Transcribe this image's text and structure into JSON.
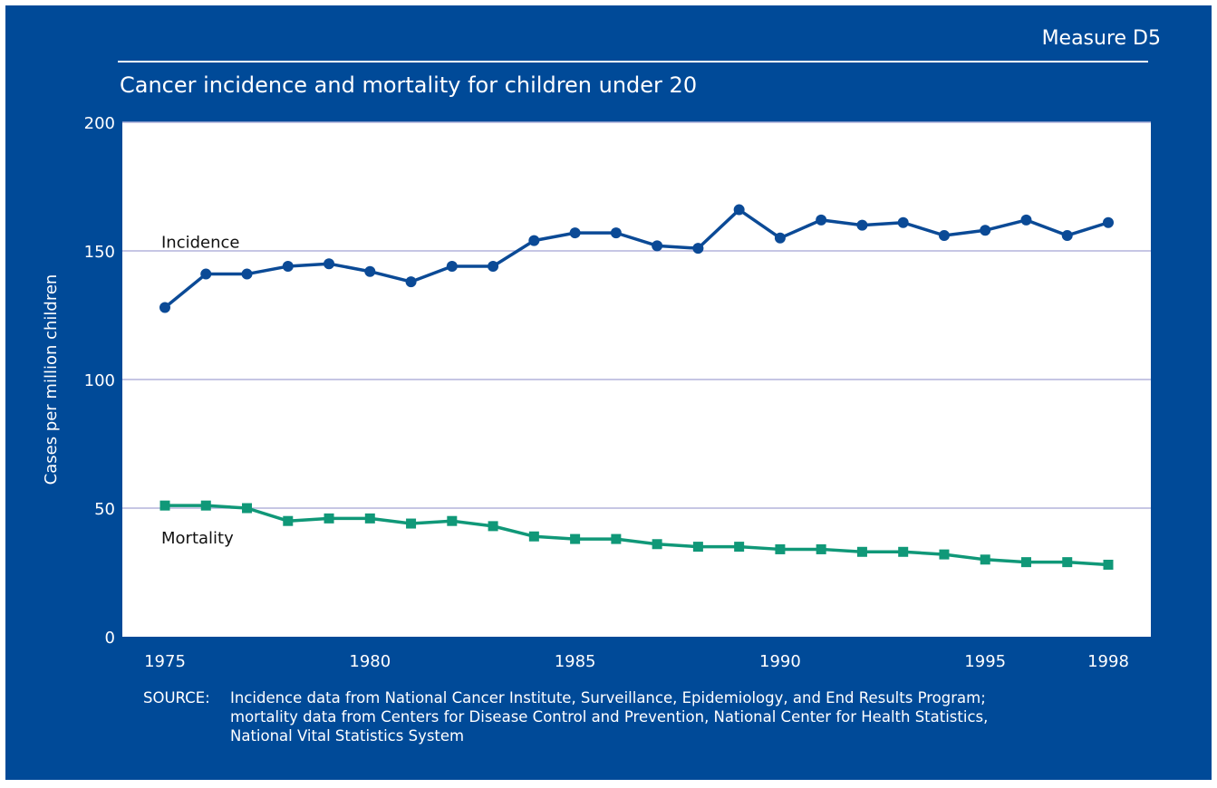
{
  "header": {
    "measure": "Measure D5",
    "title": "Cancer incidence and mortality for children under 20"
  },
  "source": {
    "label": "SOURCE:",
    "lines": [
      "Incidence data from National Cancer Institute, Surveillance, Epidemiology, and End Results Program;",
      "mortality data from Centers for Disease Control and Prevention, National Center for Health Statistics,",
      "National Vital Statistics System"
    ]
  },
  "colors": {
    "background": "#004a98",
    "plot_area": "#ffffff",
    "gridline": "#b4b4dc",
    "incidence": "#0b4a96",
    "mortality": "#109878",
    "text": "#ffffff"
  },
  "chart_data": {
    "type": "line",
    "title": "Cancer incidence and mortality for children under 20",
    "xlabel": "",
    "ylabel": "Cases per million children",
    "ylim": [
      0,
      200
    ],
    "yticks": [
      0,
      50,
      100,
      150,
      200
    ],
    "xlim": [
      1975,
      1998
    ],
    "xticks": [
      1975,
      1980,
      1985,
      1990,
      1995,
      1998
    ],
    "grid": true,
    "x": [
      1975,
      1976,
      1977,
      1978,
      1979,
      1980,
      1981,
      1982,
      1983,
      1984,
      1985,
      1986,
      1987,
      1988,
      1989,
      1990,
      1991,
      1992,
      1993,
      1994,
      1995,
      1996,
      1997,
      1998
    ],
    "series": [
      {
        "name": "Incidence",
        "marker": "circle",
        "values": [
          128,
          141,
          141,
          144,
          145,
          142,
          138,
          144,
          144,
          154,
          157,
          157,
          152,
          151,
          166,
          155,
          162,
          160,
          161,
          156,
          158,
          162,
          156,
          161
        ]
      },
      {
        "name": "Mortality",
        "marker": "square",
        "values": [
          51,
          51,
          50,
          45,
          46,
          46,
          44,
          45,
          43,
          39,
          38,
          38,
          36,
          35,
          35,
          34,
          34,
          33,
          33,
          32,
          30,
          29,
          29,
          28
        ]
      }
    ]
  }
}
